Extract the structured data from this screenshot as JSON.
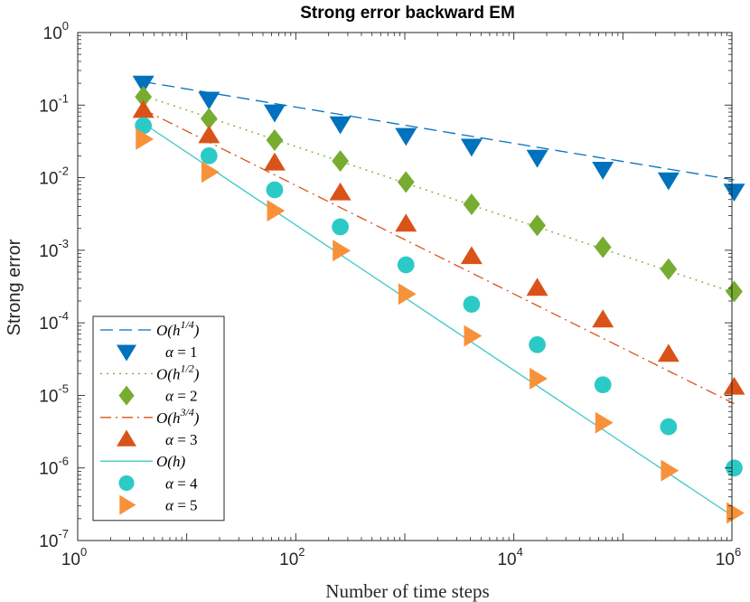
{
  "chart_data": {
    "type": "scatter",
    "title": "Strong error backward EM",
    "xlabel": "Number of time steps",
    "ylabel": "Strong error",
    "xscale": "log",
    "yscale": "log",
    "xlim": [
      1,
      1000000
    ],
    "ylim": [
      1e-07,
      1
    ],
    "x_ticks": [
      {
        "base": "10",
        "exp": "0",
        "value": 1
      },
      {
        "base": "10",
        "exp": "2",
        "value": 100
      },
      {
        "base": "10",
        "exp": "4",
        "value": 10000
      },
      {
        "base": "10",
        "exp": "6",
        "value": 1000000
      }
    ],
    "y_ticks": [
      {
        "base": "10",
        "exp": "0",
        "value": 1
      },
      {
        "base": "10",
        "exp": "-1",
        "value": 0.1
      },
      {
        "base": "10",
        "exp": "-2",
        "value": 0.01
      },
      {
        "base": "10",
        "exp": "-3",
        "value": 0.001
      },
      {
        "base": "10",
        "exp": "-4",
        "value": 0.0001
      },
      {
        "base": "10",
        "exp": "-5",
        "value": 1e-05
      },
      {
        "base": "10",
        "exp": "-6",
        "value": 1e-06
      },
      {
        "base": "10",
        "exp": "-7",
        "value": 1e-07
      }
    ],
    "x": [
      4,
      16,
      64,
      256,
      1024,
      4096,
      16384,
      65536,
      262144,
      1048576
    ],
    "reference_lines": [
      {
        "name": "O(h^{1/4})",
        "label_main": "O(h",
        "label_sup": "1/4",
        "label_end": ")",
        "color": "#0072BD",
        "dash": "14,7",
        "x": [
          4,
          1048576
        ],
        "y": [
          0.21,
          0.0093
        ]
      },
      {
        "name": "O(h^{1/2})",
        "label_main": "O(h",
        "label_sup": "1/2",
        "label_end": ")",
        "color": "#77AC30",
        "dash": "2,5",
        "x": [
          4,
          1048576
        ],
        "y": [
          0.135,
          0.00026
        ]
      },
      {
        "name": "O(h^{3/4})",
        "label_main": "O(h",
        "label_sup": "3/4",
        "label_end": ")",
        "color": "#D95319",
        "dash": "12,5,2,5",
        "x": [
          4,
          1048576
        ],
        "y": [
          0.087,
          7.7e-06
        ]
      },
      {
        "name": "O(h)",
        "label_main": "O(h)",
        "label_sup": "",
        "label_end": "",
        "color": "#4DBEEE",
        "dash": "",
        "x": [
          4,
          1048576
        ],
        "y": [
          0.056,
          2.1e-07
        ]
      }
    ],
    "series": [
      {
        "name": "α = 1",
        "alpha": "1",
        "marker": "triangle-down",
        "color": "#0072BD",
        "values": [
          0.2,
          0.12,
          0.08,
          0.055,
          0.038,
          0.027,
          0.019,
          0.013,
          0.0093,
          0.0065
        ]
      },
      {
        "name": "α = 2",
        "alpha": "2",
        "marker": "diamond",
        "color": "#77AC30",
        "values": [
          0.13,
          0.065,
          0.033,
          0.017,
          0.0087,
          0.0043,
          0.0022,
          0.0011,
          0.00055,
          0.00027
        ]
      },
      {
        "name": "α = 3",
        "alpha": "3",
        "marker": "triangle-up",
        "color": "#D95319",
        "values": [
          0.085,
          0.038,
          0.016,
          0.0062,
          0.0023,
          0.00082,
          0.0003,
          0.00011,
          3.7e-05,
          1.3e-05
        ]
      },
      {
        "name": "α = 4",
        "alpha": "4",
        "marker": "circle",
        "color": "#2CCAC6",
        "values": [
          0.052,
          0.02,
          0.0068,
          0.0021,
          0.00063,
          0.00018,
          5e-05,
          1.4e-05,
          3.7e-06,
          1e-06
        ]
      },
      {
        "name": "α = 5",
        "alpha": "5",
        "marker": "triangle-right",
        "color": "#F7923A",
        "values": [
          0.034,
          0.012,
          0.0035,
          0.00099,
          0.00025,
          6.6e-05,
          1.7e-05,
          4.2e-06,
          9.2e-07,
          2.4e-07
        ]
      }
    ],
    "reference_line_colors_override": {
      "O(h)": "#3CC8C4"
    },
    "legend_position": "bottom-left",
    "legend_order": [
      "ref0",
      "s0",
      "ref1",
      "s1",
      "ref2",
      "s2",
      "ref3",
      "s3",
      "s4"
    ],
    "grid": false
  }
}
